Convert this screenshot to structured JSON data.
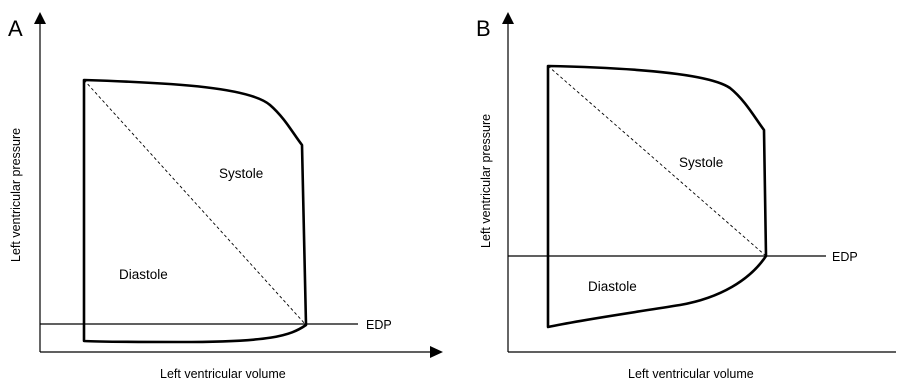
{
  "panels": [
    {
      "letter": "A",
      "y_axis_label": "Left ventricular pressure",
      "x_axis_label": "Left ventricular volume",
      "region_labels": {
        "upper": "Systole",
        "lower": "Diastole"
      },
      "reference_line_label": "EDP"
    },
    {
      "letter": "B",
      "y_axis_label": "Left ventricular pressure",
      "x_axis_label": "Left ventricular volume",
      "region_labels": {
        "upper": "Systole",
        "lower": "Diastole"
      },
      "reference_line_label": "EDP"
    }
  ]
}
